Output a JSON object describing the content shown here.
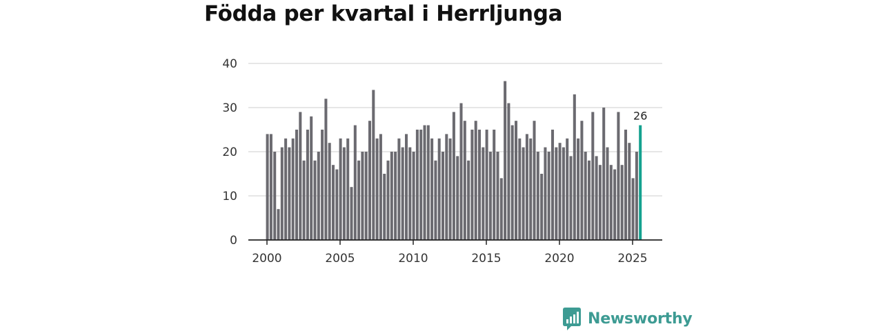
{
  "chart_data": {
    "type": "bar",
    "title": "Födda per kvartal i Herrljunga",
    "xlabel": "",
    "ylabel": "",
    "ylim": [
      0,
      40
    ],
    "yticks": [
      0,
      10,
      20,
      30,
      40
    ],
    "xticks": [
      2000,
      2005,
      2010,
      2015,
      2020,
      2025
    ],
    "x_start": 2000,
    "quarters_per_year": 4,
    "grid": true,
    "colors": {
      "bar": "#6b6a70",
      "highlight": "#14a18f",
      "grid": "#dddddd",
      "axis": "#222222"
    },
    "highlight_last": true,
    "last_value_label": "26",
    "values": [
      24,
      24,
      20,
      7,
      21,
      23,
      21,
      23,
      25,
      29,
      18,
      25,
      28,
      18,
      20,
      25,
      32,
      22,
      17,
      16,
      23,
      21,
      23,
      12,
      26,
      18,
      20,
      20,
      27,
      34,
      23,
      24,
      15,
      18,
      20,
      20,
      23,
      21,
      24,
      21,
      20,
      25,
      25,
      26,
      26,
      23,
      18,
      23,
      20,
      24,
      23,
      29,
      19,
      31,
      27,
      18,
      25,
      27,
      25,
      21,
      25,
      20,
      25,
      20,
      14,
      36,
      31,
      26,
      27,
      23,
      21,
      24,
      23,
      27,
      20,
      15,
      21,
      20,
      25,
      21,
      22,
      21,
      23,
      19,
      33,
      23,
      27,
      20,
      18,
      29,
      19,
      17,
      30,
      21,
      17,
      16,
      29,
      17,
      25,
      22,
      14,
      20,
      26
    ]
  },
  "brand": {
    "name": "Newsworthy",
    "color": "#3d9b93"
  }
}
